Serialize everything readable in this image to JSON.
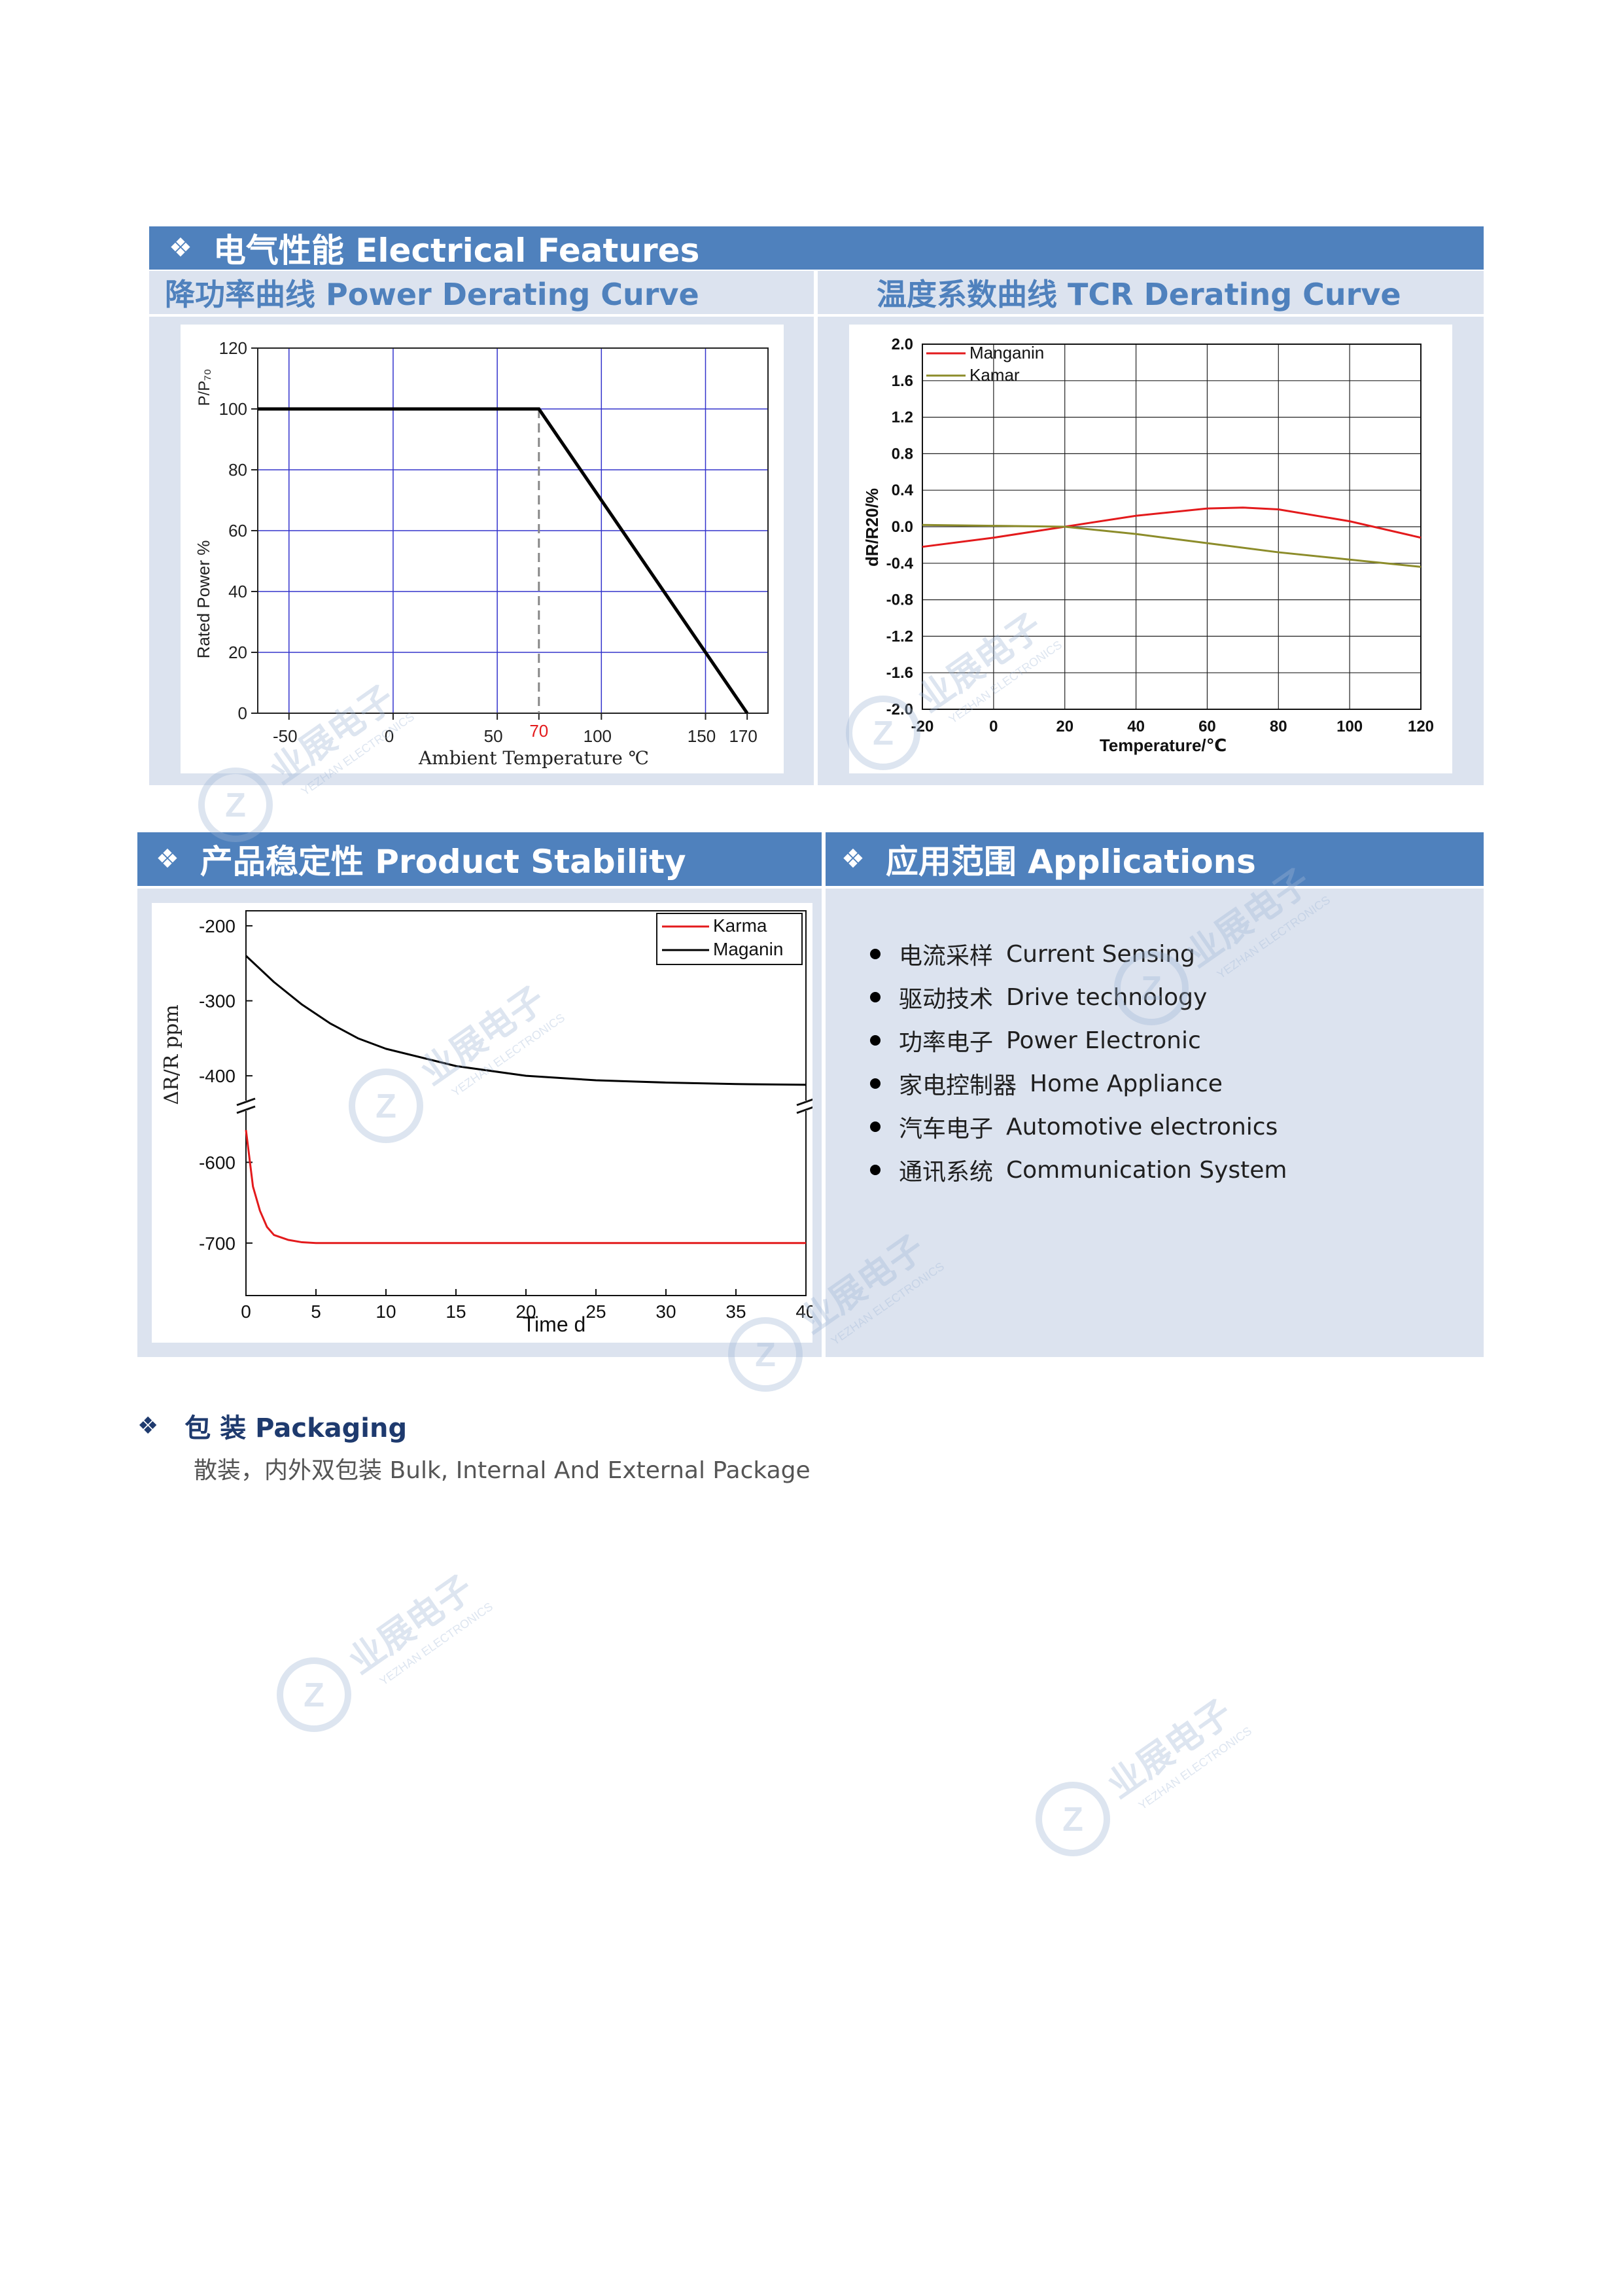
{
  "sections": {
    "electrical": {
      "icon": "❖",
      "title": "电气性能 Electrical Features"
    },
    "power_derating": {
      "title": "降功率曲线 Power Derating Curve"
    },
    "tcr": {
      "title": "温度系数曲线 TCR Derating Curve"
    },
    "stability": {
      "icon": "❖",
      "title": "产品稳定性 Product Stability"
    },
    "applications": {
      "icon": "❖",
      "title": "应用范围 Applications",
      "items": [
        {
          "cn": "电流采样",
          "en": "Current Sensing"
        },
        {
          "cn": "驱动技术",
          "en": "Drive technology"
        },
        {
          "cn": "功率电子",
          "en": "Power Electronic"
        },
        {
          "cn": "家电控制器",
          "en": "Home Appliance"
        },
        {
          "cn": "汽车电子",
          "en": "Automotive electronics"
        },
        {
          "cn": "通讯系统",
          "en": "Communication System"
        }
      ]
    },
    "packaging": {
      "icon": "❖",
      "title": "包 装 Packaging",
      "text": "散装，内外双包装  Bulk, Internal And External Package"
    }
  },
  "watermark": {
    "cn": "业展电子",
    "en": "YEZHAN ELECTRONICS"
  },
  "colors": {
    "header_blue": "#4f81bd",
    "panel": "#dce3ef",
    "grid": "#3333cc",
    "manganin_red": "#e31a1c",
    "kamar_olive": "#8c8c2a"
  },
  "chart_data": [
    {
      "type": "line",
      "name": "power_derating",
      "xlabel": "Ambient Temperature ℃",
      "ylabel": "Rated Power %",
      "y2label": "P/P₇₀",
      "xticks": [
        "-50",
        "0",
        "50",
        "70",
        "100",
        "150",
        "170"
      ],
      "yticks": [
        "0",
        "20",
        "40",
        "60",
        "80",
        "100",
        "120"
      ],
      "xlim": [
        -65,
        180
      ],
      "ylim": [
        0,
        120
      ],
      "series": [
        {
          "x": [
            -65,
            70,
            170
          ],
          "y": [
            100,
            100,
            0
          ]
        }
      ],
      "marker_x": 70,
      "grid": true
    },
    {
      "type": "line",
      "name": "tcr_curve",
      "xlabel": "Temperature/℃",
      "ylabel": "dR/R20/%",
      "xticks": [
        "-20",
        "0",
        "20",
        "40",
        "60",
        "80",
        "100",
        "120"
      ],
      "yticks": [
        "2.0",
        "1.6",
        "1.2",
        "0.8",
        "0.4",
        "0.0",
        "-0.4",
        "-0.8",
        "-1.2",
        "-1.6",
        "-2.0"
      ],
      "xlim": [
        -20,
        120
      ],
      "ylim": [
        -2.0,
        2.0
      ],
      "grid": true,
      "legend": "top-left",
      "series": [
        {
          "name": "Manganin",
          "x": [
            -20,
            0,
            20,
            40,
            60,
            70,
            80,
            100,
            120
          ],
          "y": [
            -0.22,
            -0.12,
            0.0,
            0.12,
            0.2,
            0.21,
            0.19,
            0.06,
            -0.12
          ]
        },
        {
          "name": "Kamar",
          "x": [
            -20,
            0,
            20,
            40,
            60,
            80,
            100,
            120
          ],
          "y": [
            0.02,
            0.01,
            0.0,
            -0.08,
            -0.18,
            -0.28,
            -0.36,
            -0.44
          ]
        }
      ]
    },
    {
      "type": "line",
      "name": "product_stability",
      "xlabel": "Time  d",
      "ylabel": "ΔR/R   ppm",
      "xticks": [
        "0",
        "5",
        "10",
        "15",
        "20",
        "25",
        "30",
        "35",
        "40"
      ],
      "yticks": [
        "-200",
        "-300",
        "-400",
        "-600",
        "-700"
      ],
      "xlim": [
        0,
        40
      ],
      "axis_break": true,
      "legend": "top-right",
      "series": [
        {
          "name": "Karma",
          "x": [
            0,
            0.5,
            1,
            1.5,
            2,
            3,
            4,
            5,
            10,
            20,
            30,
            40
          ],
          "y": [
            -560,
            -630,
            -660,
            -680,
            -690,
            -696,
            -699,
            -700,
            -700,
            -700,
            -700,
            -700
          ]
        },
        {
          "name": "Maganin",
          "x": [
            0,
            2,
            4,
            6,
            8,
            10,
            15,
            20,
            25,
            30,
            35,
            40
          ],
          "y": [
            -240,
            -275,
            -305,
            -330,
            -350,
            -364,
            -387,
            -400,
            -406,
            -409,
            -411,
            -412
          ]
        }
      ]
    }
  ]
}
